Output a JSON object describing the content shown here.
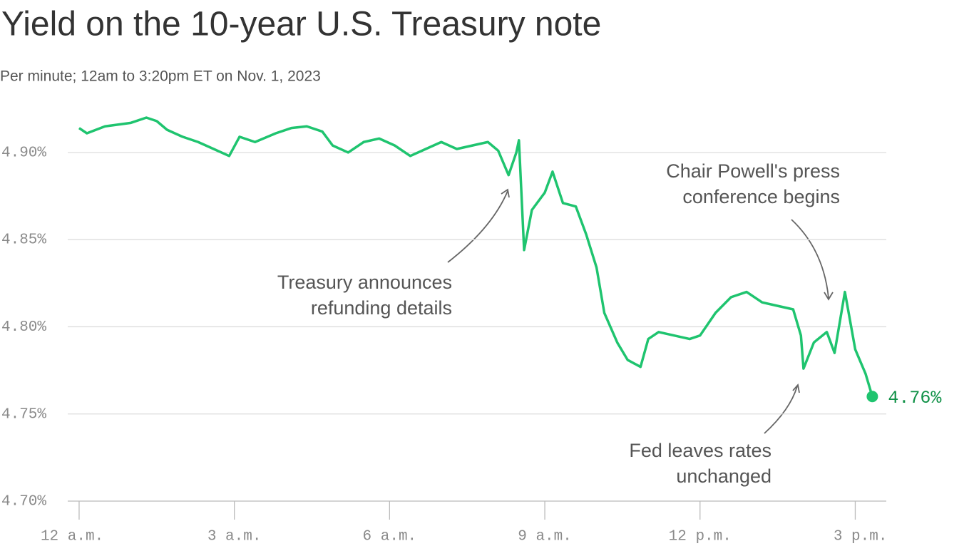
{
  "chart_data": {
    "type": "line",
    "title": "Yield on the 10-year U.S. Treasury note",
    "subtitle": "Per minute; 12am to 3:20pm ET on Nov. 1, 2023",
    "x": [
      0,
      0.15,
      0.5,
      1.0,
      1.3,
      1.5,
      1.7,
      2.0,
      2.3,
      2.6,
      2.9,
      3.1,
      3.4,
      3.8,
      4.1,
      4.4,
      4.7,
      4.9,
      5.2,
      5.5,
      5.8,
      6.1,
      6.4,
      6.7,
      7.0,
      7.3,
      7.6,
      7.9,
      8.1,
      8.3,
      8.45,
      8.5,
      8.6,
      8.75,
      9.0,
      9.15,
      9.35,
      9.6,
      9.8,
      10.0,
      10.15,
      10.4,
      10.6,
      10.85,
      11.0,
      11.2,
      11.5,
      11.8,
      12.0,
      12.3,
      12.6,
      12.9,
      13.2,
      13.5,
      13.8,
      13.95,
      14.0,
      14.2,
      14.45,
      14.6,
      14.8,
      15.0,
      15.2,
      15.33
    ],
    "series": [
      {
        "name": "10-year yield",
        "color": "#1fc46f",
        "values": [
          4.914,
          4.911,
          4.915,
          4.917,
          4.92,
          4.918,
          4.913,
          4.909,
          4.906,
          4.902,
          4.898,
          4.909,
          4.906,
          4.911,
          4.914,
          4.915,
          4.912,
          4.904,
          4.9,
          4.906,
          4.908,
          4.904,
          4.898,
          4.902,
          4.906,
          4.902,
          4.904,
          4.906,
          4.901,
          4.887,
          4.9,
          4.907,
          4.844,
          4.867,
          4.877,
          4.889,
          4.871,
          4.869,
          4.853,
          4.834,
          4.808,
          4.791,
          4.781,
          4.777,
          4.793,
          4.797,
          4.795,
          4.793,
          4.795,
          4.808,
          4.817,
          4.82,
          4.814,
          4.812,
          4.81,
          4.795,
          4.776,
          4.791,
          4.797,
          4.785,
          4.82,
          4.787,
          4.773,
          4.76
        ]
      }
    ],
    "end_label": {
      "value": 4.76,
      "label": "4.76%"
    },
    "xlim": [
      -0.22,
      15.6
    ],
    "xticks": [
      {
        "value": 0,
        "label": "12 a.m."
      },
      {
        "value": 3,
        "label": "3 a.m."
      },
      {
        "value": 6,
        "label": "6 a.m."
      },
      {
        "value": 9,
        "label": "9 a.m."
      },
      {
        "value": 12,
        "label": "12 p.m."
      },
      {
        "value": 15,
        "label": "3 p.m."
      }
    ],
    "ylim": [
      4.7,
      4.92
    ],
    "yticks": [
      {
        "value": 4.7,
        "label": "4.70%"
      },
      {
        "value": 4.75,
        "label": "4.75%"
      },
      {
        "value": 4.8,
        "label": "4.80%"
      },
      {
        "value": 4.85,
        "label": "4.85%"
      },
      {
        "value": 4.9,
        "label": "4.90%"
      }
    ],
    "grid": true,
    "annotations": [
      {
        "lines": [
          "Treasury announces",
          "refunding details"
        ]
      },
      {
        "lines": [
          "Chair Powell's press",
          "conference begins"
        ]
      },
      {
        "lines": [
          "Fed leaves rates",
          "unchanged"
        ]
      }
    ]
  }
}
